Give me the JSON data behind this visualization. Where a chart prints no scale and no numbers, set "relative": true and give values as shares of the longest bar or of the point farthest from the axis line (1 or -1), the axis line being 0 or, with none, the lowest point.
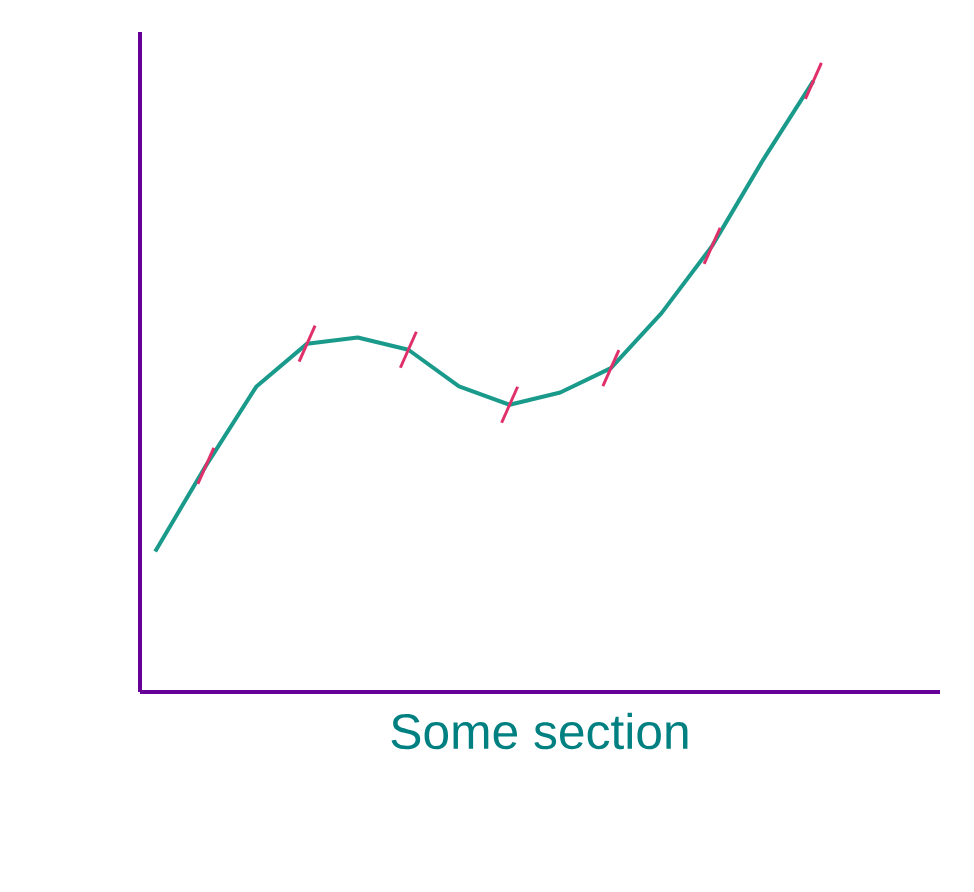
{
  "chart_data": {
    "type": "line",
    "relative": true,
    "xlabel": "Some section",
    "categories": [
      null,
      null,
      null,
      null,
      null,
      null,
      null,
      null,
      null,
      null,
      null,
      null,
      null,
      null
    ],
    "series": [
      {
        "color": "#1a9a8a",
        "values": [
          0.23,
          0.37,
          0.5,
          0.57,
          0.58,
          0.56,
          0.5,
          0.47,
          0.49,
          0.53,
          0.62,
          0.73,
          0.87,
          1.0
        ]
      }
    ]
  }
}
